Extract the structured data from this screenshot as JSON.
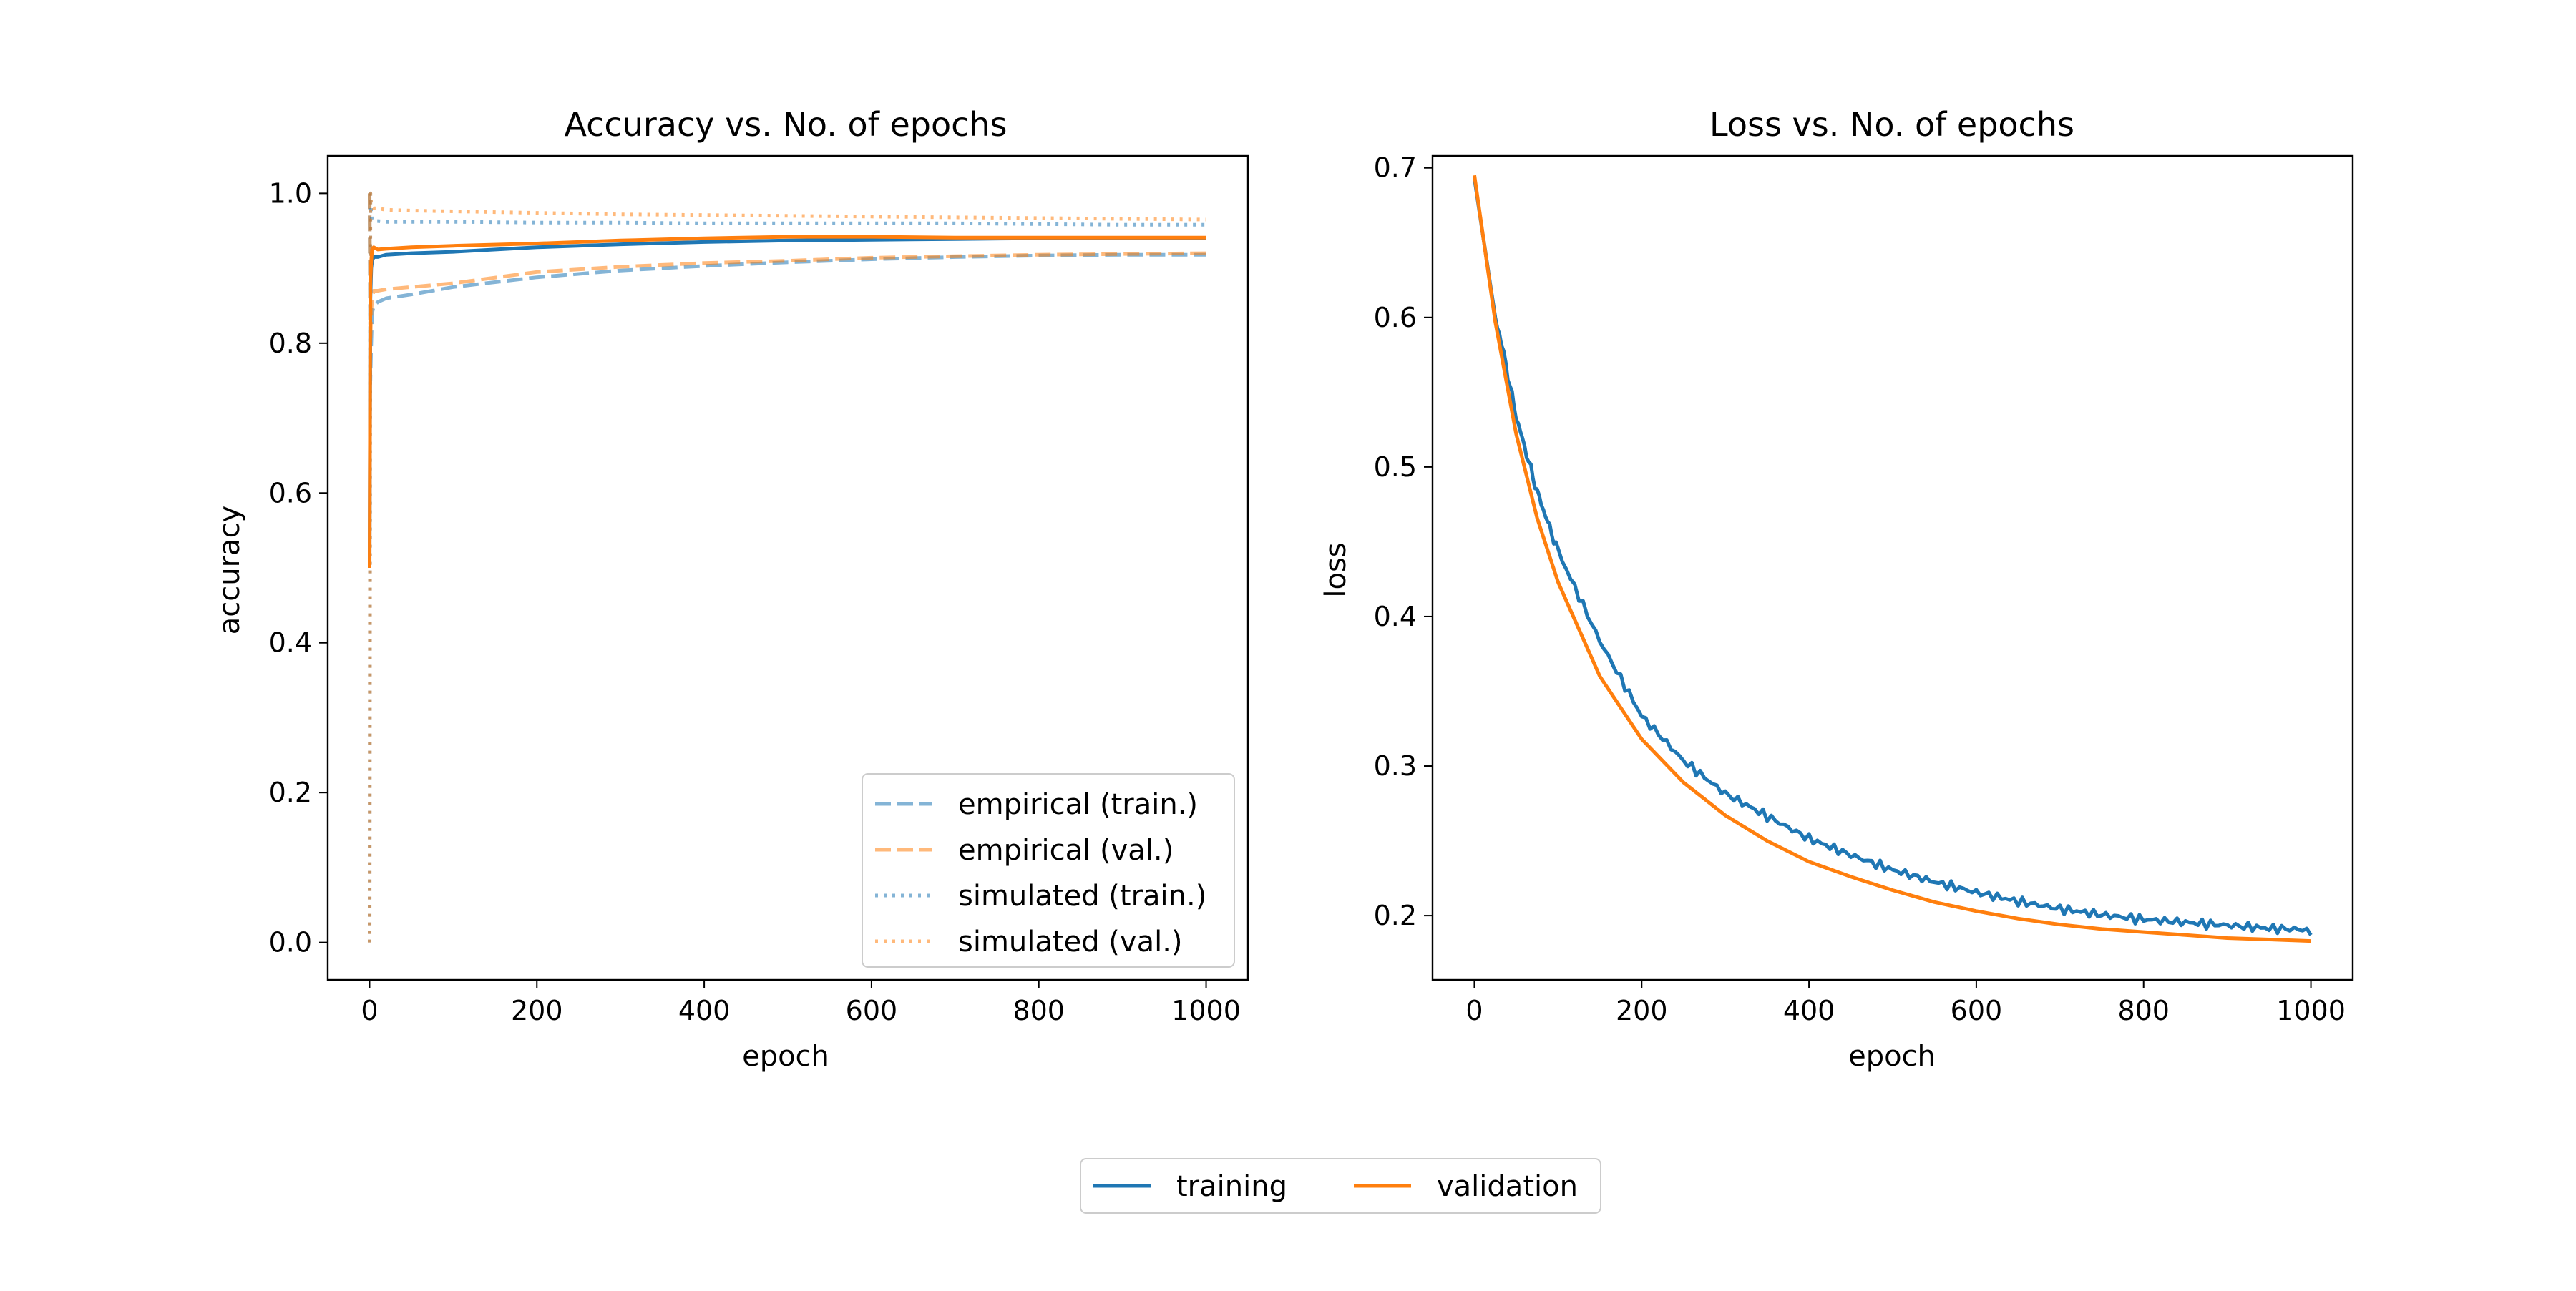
{
  "chart_data": [
    {
      "type": "line",
      "title": "Accuracy vs. No. of epochs",
      "xlabel": "epoch",
      "ylabel": "accuracy",
      "xlim": [
        -50,
        1050
      ],
      "ylim": [
        -0.05,
        1.05
      ],
      "xticks": [
        0,
        200,
        400,
        600,
        800,
        1000
      ],
      "yticks": [
        0.0,
        0.2,
        0.4,
        0.6,
        0.8,
        1.0
      ],
      "xtick_labels": [
        "0",
        "200",
        "400",
        "600",
        "800",
        "1000"
      ],
      "ytick_labels": [
        "0.0",
        "0.2",
        "0.4",
        "0.6",
        "0.8",
        "1.0"
      ],
      "legend_position": "lower-right",
      "series": [
        {
          "name": "",
          "role": "training",
          "style": "solid",
          "color": "#1f77b4",
          "opacity": 1.0,
          "x": [
            0,
            1,
            2,
            3,
            5,
            10,
            20,
            50,
            100,
            200,
            300,
            400,
            500,
            600,
            700,
            800,
            900,
            1000
          ],
          "y": [
            0.5,
            0.86,
            0.9,
            0.91,
            0.915,
            0.915,
            0.918,
            0.92,
            0.922,
            0.928,
            0.932,
            0.935,
            0.937,
            0.938,
            0.939,
            0.94,
            0.94,
            0.94
          ]
        },
        {
          "name": "",
          "role": "validation",
          "style": "solid",
          "color": "#ff7f0e",
          "opacity": 1.0,
          "x": [
            0,
            1,
            2,
            3,
            5,
            10,
            20,
            50,
            100,
            200,
            300,
            400,
            500,
            600,
            700,
            800,
            900,
            1000
          ],
          "y": [
            0.5,
            0.88,
            0.91,
            0.925,
            0.928,
            0.925,
            0.926,
            0.928,
            0.93,
            0.933,
            0.937,
            0.94,
            0.942,
            0.942,
            0.941,
            0.941,
            0.941,
            0.941
          ]
        },
        {
          "name": "empirical (train.)",
          "style": "dashed",
          "color": "#1f77b4",
          "opacity": 0.55,
          "x": [
            0,
            1,
            2,
            3,
            5,
            10,
            20,
            50,
            100,
            200,
            300,
            400,
            500,
            600,
            700,
            800,
            900,
            1000
          ],
          "y": [
            1.0,
            0.75,
            0.8,
            0.84,
            0.85,
            0.855,
            0.86,
            0.865,
            0.875,
            0.888,
            0.897,
            0.903,
            0.908,
            0.912,
            0.915,
            0.917,
            0.918,
            0.918
          ]
        },
        {
          "name": "empirical (val.)",
          "style": "dashed",
          "color": "#ff7f0e",
          "opacity": 0.55,
          "x": [
            0,
            1,
            2,
            3,
            5,
            10,
            20,
            50,
            100,
            200,
            300,
            400,
            500,
            600,
            700,
            800,
            900,
            1000
          ],
          "y": [
            1.0,
            0.8,
            0.84,
            0.86,
            0.87,
            0.87,
            0.872,
            0.875,
            0.88,
            0.895,
            0.902,
            0.907,
            0.91,
            0.914,
            0.916,
            0.918,
            0.919,
            0.92
          ]
        },
        {
          "name": "simulated (train.)",
          "style": "dotted",
          "color": "#1f77b4",
          "opacity": 0.55,
          "x": [
            0,
            1,
            2,
            3,
            5,
            10,
            20,
            50,
            100,
            200,
            300,
            400,
            500,
            600,
            700,
            800,
            900,
            1000
          ],
          "y": [
            0.0,
            1.0,
            0.97,
            0.965,
            0.963,
            0.963,
            0.962,
            0.962,
            0.962,
            0.961,
            0.961,
            0.96,
            0.96,
            0.96,
            0.96,
            0.959,
            0.958,
            0.958
          ]
        },
        {
          "name": "simulated (val.)",
          "style": "dotted",
          "color": "#ff7f0e",
          "opacity": 0.55,
          "x": [
            0,
            1,
            2,
            3,
            5,
            10,
            20,
            50,
            100,
            200,
            300,
            400,
            500,
            600,
            700,
            800,
            900,
            1000
          ],
          "y": [
            0.0,
            1.0,
            0.985,
            0.982,
            0.98,
            0.98,
            0.978,
            0.977,
            0.976,
            0.974,
            0.972,
            0.971,
            0.97,
            0.969,
            0.968,
            0.967,
            0.966,
            0.965
          ]
        }
      ]
    },
    {
      "type": "line",
      "title": "Loss vs. No. of epochs",
      "xlabel": "epoch",
      "ylabel": "loss",
      "xlim": [
        -50,
        1050
      ],
      "ylim": [
        0.157,
        0.708
      ],
      "xticks": [
        0,
        200,
        400,
        600,
        800,
        1000
      ],
      "yticks": [
        0.2,
        0.3,
        0.4,
        0.5,
        0.6,
        0.7
      ],
      "xtick_labels": [
        "0",
        "200",
        "400",
        "600",
        "800",
        "1000"
      ],
      "ytick_labels": [
        "0.2",
        "0.3",
        "0.4",
        "0.5",
        "0.6",
        "0.7"
      ],
      "series": [
        {
          "name": "training",
          "style": "solid",
          "color": "#1f77b4",
          "opacity": 1.0,
          "noisy": true,
          "x": [
            0,
            25,
            50,
            75,
            100,
            150,
            200,
            250,
            300,
            350,
            400,
            450,
            500,
            550,
            600,
            650,
            700,
            750,
            800,
            850,
            900,
            950,
            1000
          ],
          "y": [
            0.693,
            0.6,
            0.53,
            0.48,
            0.44,
            0.38,
            0.33,
            0.3,
            0.278,
            0.263,
            0.248,
            0.237,
            0.227,
            0.219,
            0.212,
            0.206,
            0.201,
            0.197,
            0.194,
            0.192,
            0.19,
            0.188,
            0.187
          ]
        },
        {
          "name": "validation",
          "style": "solid",
          "color": "#ff7f0e",
          "opacity": 1.0,
          "x": [
            0,
            25,
            50,
            75,
            100,
            150,
            200,
            250,
            300,
            350,
            400,
            450,
            500,
            550,
            600,
            650,
            700,
            750,
            800,
            850,
            900,
            950,
            1000
          ],
          "y": [
            0.695,
            0.597,
            0.522,
            0.466,
            0.423,
            0.36,
            0.318,
            0.289,
            0.267,
            0.25,
            0.236,
            0.226,
            0.217,
            0.209,
            0.203,
            0.198,
            0.194,
            0.191,
            0.189,
            0.187,
            0.185,
            0.184,
            0.183
          ]
        }
      ]
    }
  ],
  "shared_legend": {
    "entries": [
      {
        "label": "training",
        "color": "#1f77b4"
      },
      {
        "label": "validation",
        "color": "#ff7f0e"
      }
    ]
  }
}
